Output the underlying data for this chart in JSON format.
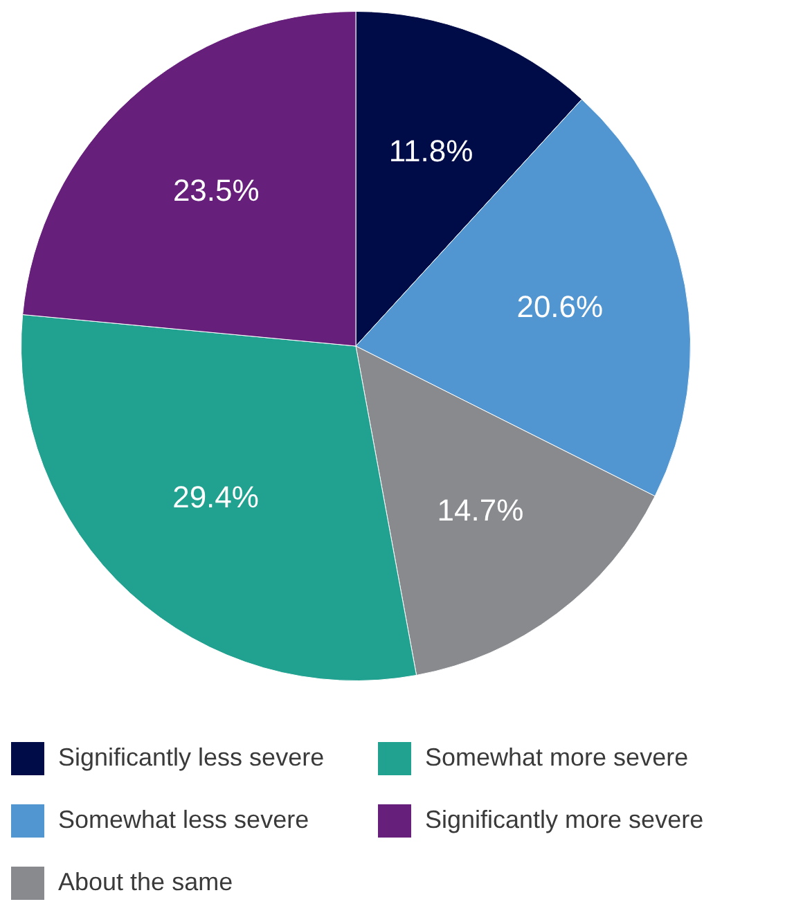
{
  "chart_data": {
    "type": "pie",
    "categories": [
      "Significantly less severe",
      "Somewhat less severe",
      "About the same",
      "Somewhat more severe",
      "Significantly more severe"
    ],
    "values": [
      11.8,
      20.6,
      14.7,
      29.4,
      23.5
    ],
    "colors": [
      "#000c47",
      "#5195d1",
      "#888a8e",
      "#21a18f",
      "#661f7a"
    ],
    "value_labels": [
      "11.8%",
      "20.6%",
      "14.7%",
      "29.4%",
      "23.5%"
    ],
    "legend": "bottom"
  }
}
